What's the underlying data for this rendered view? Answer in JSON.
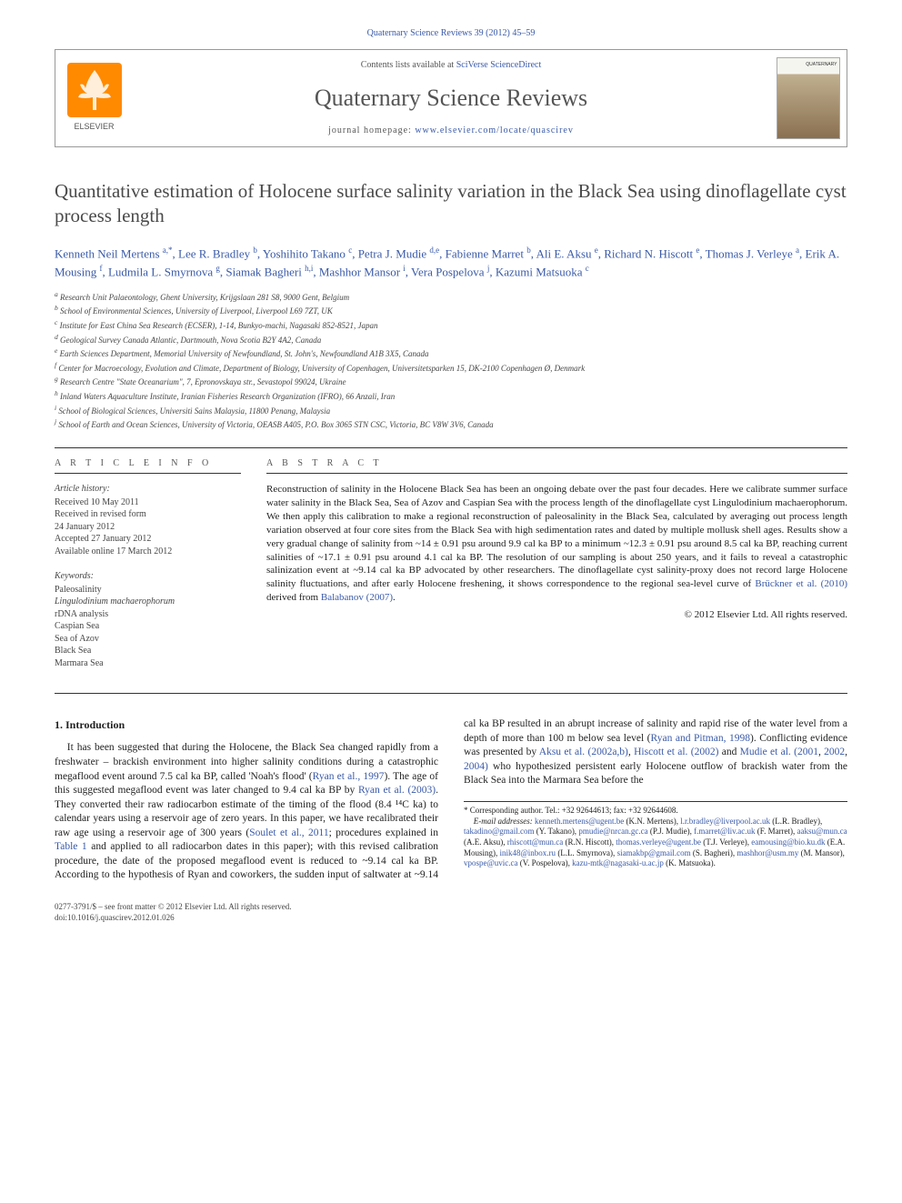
{
  "citation": "Quaternary Science Reviews 39 (2012) 45–59",
  "header": {
    "contents_prefix": "Contents lists available at ",
    "contents_link": "SciVerse ScienceDirect",
    "journal_name": "Quaternary Science Reviews",
    "homepage_prefix": "journal homepage: ",
    "homepage_url": "www.elsevier.com/locate/quascirev",
    "publisher": "ELSEVIER"
  },
  "title": "Quantitative estimation of Holocene surface salinity variation in the Black Sea using dinoflagellate cyst process length",
  "authors_html": "Kenneth Neil Mertens <sup>a,*</sup>, Lee R. Bradley <sup>b</sup>, Yoshihito Takano <sup>c</sup>, Petra J. Mudie <sup>d,e</sup>, Fabienne Marret <sup>b</sup>, Ali E. Aksu <sup>e</sup>, Richard N. Hiscott <sup>e</sup>, Thomas J. Verleye <sup>a</sup>, Erik A. Mousing <sup>f</sup>, Ludmila L. Smyrnova <sup>g</sup>, Siamak Bagheri <sup>h,i</sup>, Mashhor Mansor <sup>i</sup>, Vera Pospelova <sup>j</sup>, Kazumi Matsuoka <sup>c</sup>",
  "affiliations": [
    "a Research Unit Palaeontology, Ghent University, Krijgslaan 281 S8, 9000 Gent, Belgium",
    "b School of Environmental Sciences, University of Liverpool, Liverpool L69 7ZT, UK",
    "c Institute for East China Sea Research (ECSER), 1-14, Bunkyo-machi, Nagasaki 852-8521, Japan",
    "d Geological Survey Canada Atlantic, Dartmouth, Nova Scotia B2Y 4A2, Canada",
    "e Earth Sciences Department, Memorial University of Newfoundland, St. John's, Newfoundland A1B 3X5, Canada",
    "f Center for Macroecology, Evolution and Climate, Department of Biology, University of Copenhagen, Universitetsparken 15, DK-2100 Copenhagen Ø, Denmark",
    "g Research Centre \"State Oceanarium\", 7, Epronovskaya str., Sevastopol 99024, Ukraine",
    "h Inland Waters Aquaculture Institute, Iranian Fisheries Research Organization (IFRO), 66 Anzali, Iran",
    "i School of Biological Sciences, Universiti Sains Malaysia, 11800 Penang, Malaysia",
    "j School of Earth and Ocean Sciences, University of Victoria, OEASB A405, P.O. Box 3065 STN CSC, Victoria, BC V8W 3V6, Canada"
  ],
  "article_info": {
    "heading": "A R T I C L E   I N F O",
    "history_label": "Article history:",
    "history": [
      "Received 10 May 2011",
      "Received in revised form",
      "24 January 2012",
      "Accepted 27 January 2012",
      "Available online 17 March 2012"
    ],
    "keywords_label": "Keywords:",
    "keywords": [
      "Paleosalinity",
      "Lingulodinium machaerophorum",
      "rDNA analysis",
      "Caspian Sea",
      "Sea of Azov",
      "Black Sea",
      "Marmara Sea"
    ]
  },
  "abstract": {
    "heading": "A B S T R A C T",
    "text_pre": "Reconstruction of salinity in the Holocene Black Sea has been an ongoing debate over the past four decades. Here we calibrate summer surface water salinity in the Black Sea, Sea of Azov and Caspian Sea with the process length of the dinoflagellate cyst Lingulodinium machaerophorum. We then apply this calibration to make a regional reconstruction of paleosalinity in the Black Sea, calculated by averaging out process length variation observed at four core sites from the Black Sea with high sedimentation rates and dated by multiple mollusk shell ages. Results show a very gradual change of salinity from ~14 ± 0.91 psu around 9.9 cal ka BP to a minimum ~12.3 ± 0.91 psu around 8.5 cal ka BP, reaching current salinities of ~17.1 ± 0.91 psu around 4.1 cal ka BP. The resolution of our sampling is about 250 years, and it fails to reveal a catastrophic salinization event at ~9.14 cal ka BP advocated by other researchers. The dinoflagellate cyst salinity-proxy does not record large Holocene salinity fluctuations, and after early Holocene freshening, it shows correspondence to the regional sea-level curve of ",
    "link1": "Brückner et al. (2010)",
    "mid": " derived from ",
    "link2": "Balabanov (2007)",
    "tail": ".",
    "copyright": "© 2012 Elsevier Ltd. All rights reserved."
  },
  "body": {
    "section_heading": "1. Introduction",
    "p1_pre": "It has been suggested that during the Holocene, the Black Sea changed rapidly from a freshwater – brackish environment into higher salinity conditions during a catastrophic megaflood event around 7.5 cal ka BP, called 'Noah's flood' (",
    "p1_link1": "Ryan et al., 1997",
    "p1_mid1": "). The age of this suggested megaflood event was later changed to 9.4 cal ka BP by ",
    "p1_link2": "Ryan et al. (2003)",
    "p1_mid2": ". They converted their raw radiocarbon estimate of the timing of the flood (8.4 ¹⁴C ka) to calendar years using a reservoir age of zero years. In this paper, we have recalibrated their raw age using a reservoir age of 300 years (",
    "p1_link3": "Soulet et al., 2011",
    "p1_mid3": "; procedures explained in ",
    "p1_link4": "Table 1",
    "p1_mid4": " and applied to all radiocarbon dates in this paper); with this revised calibration procedure, the date of the proposed megaflood event is reduced to ~9.14 cal ka BP. According to the hypothesis of Ryan and coworkers, the sudden input of saltwater at ~9.14 cal ka BP resulted in an abrupt increase of salinity and rapid rise of the water level from a depth of more than 100 m below sea level (",
    "p1_link5": "Ryan and Pitman, 1998",
    "p1_mid5": "). Conflicting evidence was presented by ",
    "p1_link6": "Aksu et al. (2002a,b)",
    "p1_mid6": ", ",
    "p1_link7": "Hiscott et al. (2002)",
    "p1_mid7": " and ",
    "p1_link8": "Mudie et al. (2001",
    "p1_mid8": ", ",
    "p1_link9": "2002",
    "p1_mid9": ", ",
    "p1_link10": "2004)",
    "p1_tail": " who hypothesized persistent early Holocene outflow of brackish water from the Black Sea into the Marmara Sea before the"
  },
  "footnotes": {
    "corr": "* Corresponding author. Tel.: +32 92644613; fax: +32 92644608.",
    "email_label": "E-mail addresses: ",
    "emails": "kenneth.mertens@ugent.be (K.N. Mertens), l.r.bradley@liverpool.ac.uk (L.R. Bradley), takadino@gmail.com (Y. Takano), pmudie@nrcan.gc.ca (P.J. Mudie), f.marret@liv.ac.uk (F. Marret), aaksu@mun.ca (A.E. Aksu), rhiscott@mun.ca (R.N. Hiscott), thomas.verleye@ugent.be (T.J. Verleye), eamousing@bio.ku.dk (E.A. Mousing), inik48@inbox.ru (L.L. Smyrnova), siamakbp@gmail.com (S. Bagheri), mashhor@usm.my (M. Mansor), vpospe@uvic.ca (V. Pospelova), kazu-mtk@nagasaki-u.ac.jp (K. Matsuoka)."
  },
  "bottom": {
    "line1": "0277-3791/$ – see front matter © 2012 Elsevier Ltd. All rights reserved.",
    "line2": "doi:10.1016/j.quascirev.2012.01.026"
  },
  "colors": {
    "link": "#3a5aa8",
    "text": "#222222",
    "heading_gray": "#4a4a4a",
    "elsevier_orange": "#ff8a00"
  }
}
